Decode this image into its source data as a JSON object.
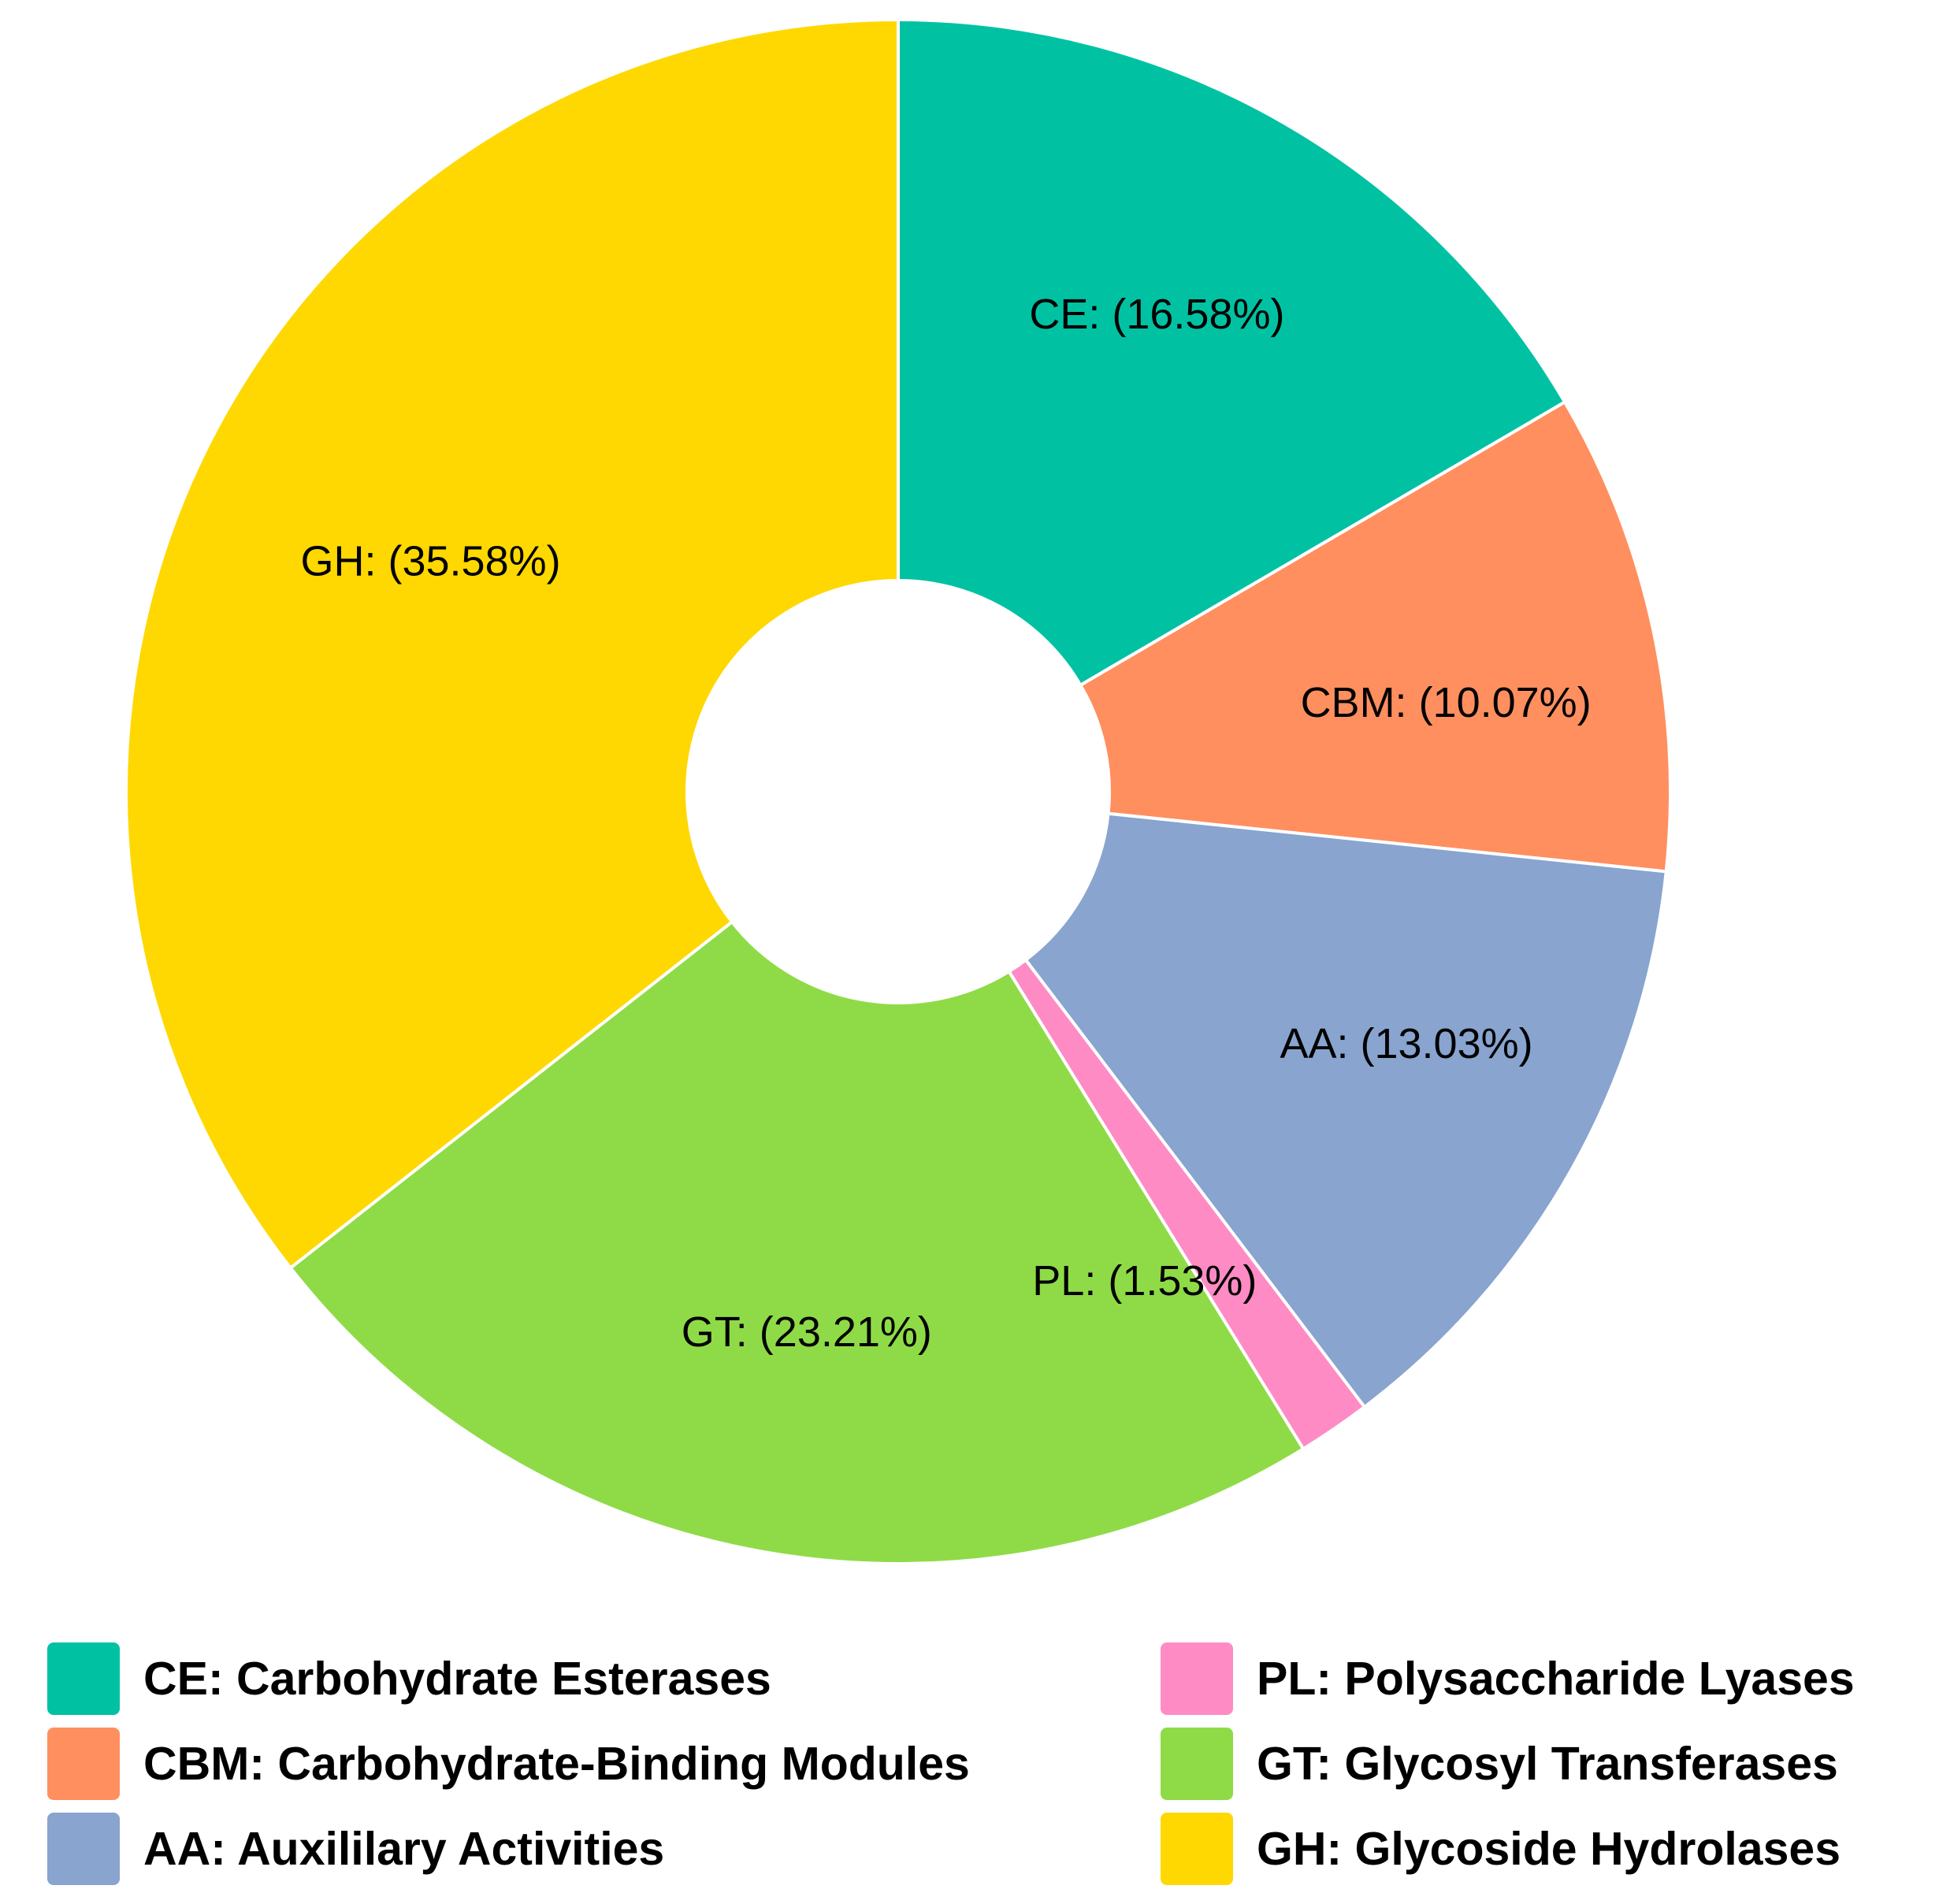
{
  "chart_data": {
    "type": "pie",
    "variant": "donut",
    "slices": [
      {
        "key": "CE",
        "label": "CE: (16.58%)",
        "value": 16.58,
        "color": "#00c2a3"
      },
      {
        "key": "CBM",
        "label": "CBM: (10.07%)",
        "value": 10.07,
        "color": "#ff8f5f"
      },
      {
        "key": "AA",
        "label": "AA: (13.03%)",
        "value": 13.03,
        "color": "#88a4cf"
      },
      {
        "key": "PL",
        "label": "PL: (1.53%)",
        "value": 1.53,
        "color": "#ff8bc5"
      },
      {
        "key": "GT",
        "label": "GT: (23.21%)",
        "value": 23.21,
        "color": "#8fdb47"
      },
      {
        "key": "GH",
        "label": "GH: (35.58%)",
        "value": 35.58,
        "color": "#fed800"
      }
    ],
    "legend_placement": "bottom"
  },
  "legend": [
    {
      "text": "CE: Carbohydrate Esterases",
      "color": "#00c2a3"
    },
    {
      "text": "CBM: Carbohydrate-Binding Modules",
      "color": "#ff8f5f"
    },
    {
      "text": "AA: Auxililary Activities",
      "color": "#88a4cf"
    },
    {
      "text": "PL: Polysaccharide Lyases",
      "color": "#ff8bc5"
    },
    {
      "text": "GT: Glycosyl Transferases",
      "color": "#8fdb47"
    },
    {
      "text": "GH: Glycoside Hydrolases",
      "color": "#fed800"
    }
  ]
}
